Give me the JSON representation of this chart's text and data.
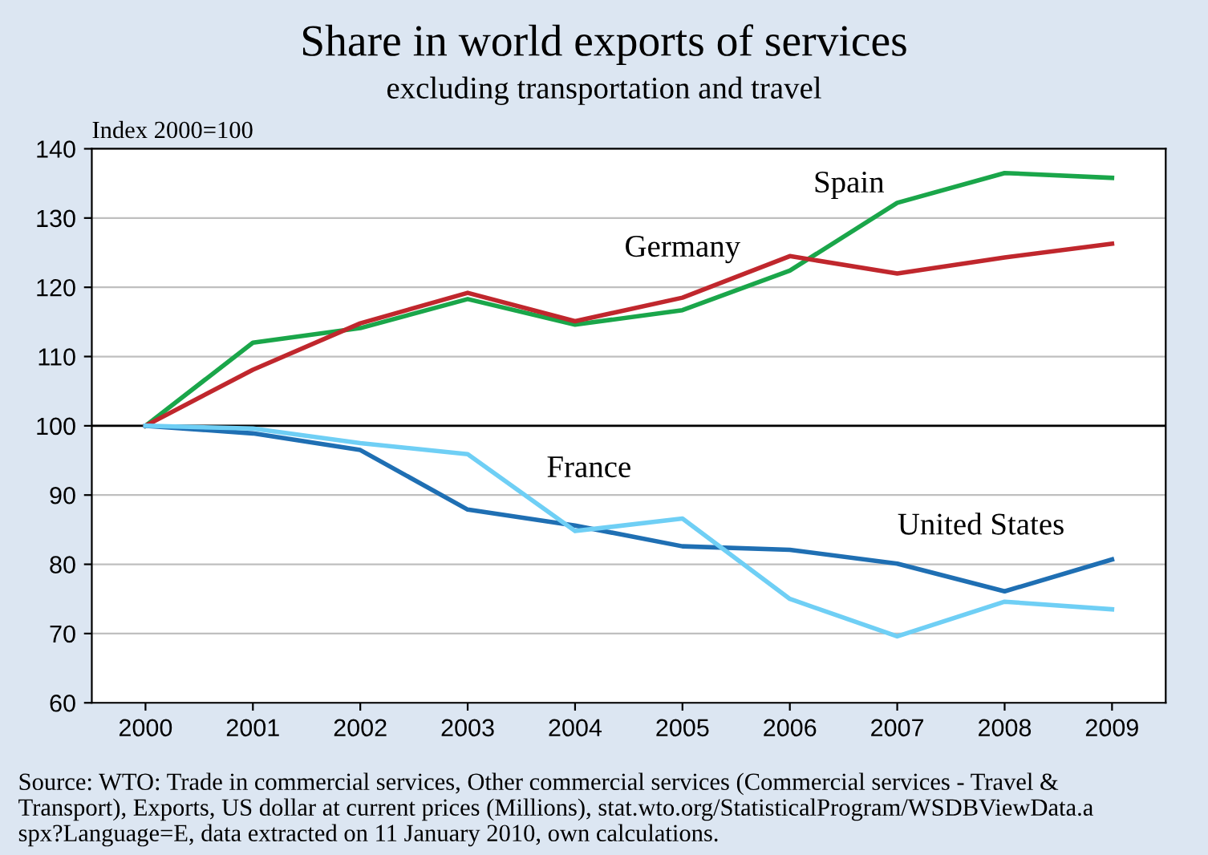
{
  "chart_data": {
    "type": "line",
    "title": "Share in world exports of services",
    "subtitle": "excluding transportation and travel",
    "ylabel": "Index 2000=100",
    "x": [
      2000,
      2001,
      2002,
      2003,
      2004,
      2005,
      2006,
      2007,
      2008,
      2009
    ],
    "xlim": [
      1999.5,
      2009.5
    ],
    "xticks": [
      2000,
      2001,
      2002,
      2003,
      2004,
      2005,
      2006,
      2007,
      2008,
      2009
    ],
    "ylim": [
      60,
      140
    ],
    "yticks": [
      60,
      70,
      80,
      90,
      100,
      110,
      120,
      130,
      140
    ],
    "grid": "y",
    "legend": false,
    "marker": "none",
    "line_style": "solid",
    "series": [
      {
        "name": "Spain",
        "color": "#1aa64a",
        "values": [
          100,
          112,
          114.1,
          118.3,
          114.6,
          116.7,
          122.4,
          132.2,
          136.5,
          135.8
        ]
      },
      {
        "name": "Germany",
        "color": "#c0272d",
        "values": [
          100,
          108.1,
          114.8,
          119.2,
          115.1,
          118.5,
          124.5,
          122.0,
          124.3,
          126.3
        ]
      },
      {
        "name": "United States",
        "color": "#1f6fb3",
        "values": [
          100,
          98.9,
          96.5,
          87.9,
          85.6,
          82.6,
          82.1,
          80.1,
          76.1,
          80.7
        ]
      },
      {
        "name": "France",
        "color": "#6fcff5",
        "values": [
          100,
          99.6,
          97.5,
          95.9,
          84.8,
          86.6,
          75.0,
          69.6,
          74.6,
          73.5
        ]
      }
    ],
    "ref_lines": [
      {
        "axis": "y",
        "value": 100,
        "color": "#000000"
      }
    ],
    "annotations": [
      "Source: WTO: Trade in commercial services, Other commercial services (Commercial services - Travel &\nTransport), Exports, US dollar at current prices (Millions), stat.wto.org/StatisticalProgram/WSDBViewData.a\nspx?Language=E, data extracted on 11 January 2010, own calculations."
    ]
  }
}
